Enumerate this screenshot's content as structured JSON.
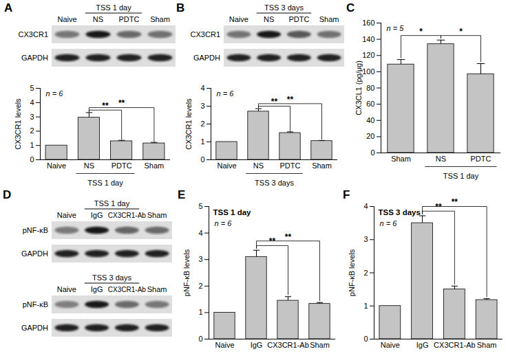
{
  "chart_data": [
    {
      "panel": "A",
      "type": "bar",
      "y_label": "CX3CR1 levels",
      "categories": [
        "Naive",
        "NS",
        "PDTC",
        "Sham"
      ],
      "values": [
        1,
        2.95,
        1.3,
        1.15
      ],
      "errors": [
        null,
        0.35,
        0.06,
        0.07
      ],
      "color": "#c4c4c4",
      "ylim": [
        0,
        5
      ],
      "yticks": [
        0,
        1,
        2,
        3,
        4,
        5
      ],
      "annotations": [
        "n = 6"
      ],
      "group": {
        "label": "TSS 1 day",
        "categories": [
          "NS",
          "PDTC"
        ]
      },
      "brackets": [
        {
          "from": "NS",
          "to": "PDTC",
          "label": "**"
        },
        {
          "from": "NS",
          "to": "Sham",
          "label": "**"
        }
      ]
    },
    {
      "panel": "B",
      "type": "bar",
      "y_label": "CX3CR1 levels",
      "categories": [
        "Naive",
        "NS",
        "PDTC",
        "Sham"
      ],
      "values": [
        1,
        2.7,
        1.5,
        1.05
      ],
      "errors": [
        null,
        0.16,
        0.06,
        0.03
      ],
      "color": "#c4c4c4",
      "ylim": [
        0,
        4
      ],
      "yticks": [
        0,
        1,
        2,
        3,
        4
      ],
      "annotations": [
        "n = 6"
      ],
      "group": {
        "label": "TSS 3 days",
        "categories": [
          "NS",
          "PDTC"
        ]
      },
      "brackets": [
        {
          "from": "NS",
          "to": "PDTC",
          "label": "**"
        },
        {
          "from": "NS",
          "to": "Sham",
          "label": "**"
        }
      ]
    },
    {
      "panel": "C",
      "type": "bar",
      "y_label": "CX3CL1 (pg/μg)",
      "categories": [
        "Sham",
        "NS",
        "PDTC"
      ],
      "values": [
        109,
        134,
        97
      ],
      "errors": [
        6,
        5,
        13
      ],
      "color": "#c4c4c4",
      "ylim": [
        0,
        160
      ],
      "yticks": [
        0,
        20,
        40,
        60,
        80,
        100,
        120,
        140,
        160
      ],
      "annotations": [
        "n = 5"
      ],
      "group": {
        "label": "TSS 1 day",
        "categories": [
          "NS",
          "PDTC"
        ]
      },
      "brackets": [
        {
          "from": "Sham",
          "to": "NS",
          "label": "*"
        },
        {
          "from": "NS",
          "to": "PDTC",
          "label": "*"
        }
      ]
    },
    {
      "panel": "E",
      "type": "bar",
      "title": "TSS 1 day",
      "y_label": "pNF-κB levels",
      "categories": [
        "Naive",
        "IgG",
        "CX3CR1-Ab",
        "Sham"
      ],
      "values": [
        1,
        3.1,
        1.45,
        1.33
      ],
      "errors": [
        null,
        0.25,
        0.15,
        0.05
      ],
      "color": "#c4c4c4",
      "ylim": [
        0,
        5
      ],
      "yticks": [
        0,
        1,
        2,
        3,
        4,
        5
      ],
      "annotations": [
        "n = 6"
      ],
      "brackets": [
        {
          "from": "IgG",
          "to": "CX3CR1-Ab",
          "label": "**"
        },
        {
          "from": "IgG",
          "to": "Sham",
          "label": "**"
        }
      ]
    },
    {
      "panel": "F",
      "type": "bar",
      "title": "TSS 3 days",
      "y_label": "pNF-κB levels",
      "categories": [
        "Naive",
        "IgG",
        "CX3CR1-Ab",
        "Sham"
      ],
      "values": [
        1,
        3.5,
        1.5,
        1.18
      ],
      "errors": [
        null,
        0.22,
        0.1,
        0.04
      ],
      "color": "#c4c4c4",
      "ylim": [
        0,
        4
      ],
      "yticks": [
        0,
        1,
        2,
        3,
        4
      ],
      "annotations": [
        "n = 6"
      ],
      "brackets": [
        {
          "from": "IgG",
          "to": "CX3CR1-Ab",
          "label": "**"
        },
        {
          "from": "IgG",
          "to": "Sham",
          "label": "**"
        }
      ]
    }
  ],
  "blots": [
    {
      "panel": "A",
      "lanes": [
        "Naive",
        "NS",
        "PDTC",
        "Sham"
      ],
      "group": {
        "label": "TSS 1 day",
        "lanes": [
          "NS",
          "PDTC"
        ]
      },
      "rows": [
        "CX3CR1",
        "GAPDH"
      ]
    },
    {
      "panel": "B",
      "lanes": [
        "Naive",
        "NS",
        "PDTC",
        "Sham"
      ],
      "group": {
        "label": "TSS 3 days",
        "lanes": [
          "NS",
          "PDTC"
        ]
      },
      "rows": [
        "CX3CR1",
        "GAPDH"
      ]
    },
    {
      "panel": "D",
      "lanes": [
        "Naive",
        "IgG",
        "CX3CR1-Ab",
        "Sham"
      ],
      "group": {
        "label": "TSS 1 day",
        "lanes": [
          "IgG",
          "CX3CR1-Ab"
        ]
      },
      "rows": [
        "pNF-κB",
        "GAPDH"
      ]
    },
    {
      "lanes": [
        "Naive",
        "IgG",
        "CX3CR1-Ab",
        "Sham"
      ],
      "group": {
        "label": "TSS 3 days",
        "lanes": [
          "IgG",
          "CX3CR1-Ab"
        ]
      },
      "rows": [
        "pNF-κB",
        "GAPDH"
      ]
    }
  ]
}
